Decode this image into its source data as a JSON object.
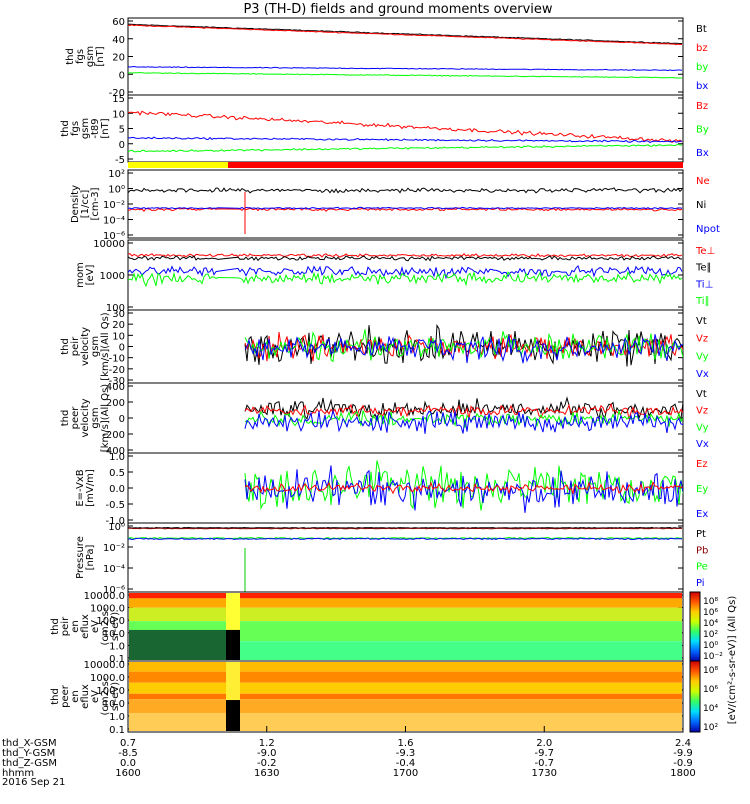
{
  "title": "P3 (TH-D) fields and ground moments overview",
  "date_label": "2016 Sep 21",
  "colors": {
    "black": "#000000",
    "red": "#ff0000",
    "green": "#00ff00",
    "blue": "#0000ff",
    "darkred": "#880000",
    "yellow": "#ffff00"
  },
  "chart_data": [
    {
      "type": "line",
      "ylabel": [
        "thd",
        "fgs",
        "gsm",
        "[nT]"
      ],
      "yticks": [
        "60",
        "40",
        "20",
        "0",
        "-20"
      ],
      "ylim": [
        -20,
        65
      ],
      "series": [
        {
          "name": "Bt",
          "color": "#000000",
          "start": 61,
          "end": 38
        },
        {
          "name": "bz",
          "color": "#ff0000",
          "start": 60,
          "end": 37
        },
        {
          "name": "by",
          "color": "#00ff00",
          "start": 3,
          "end": -3
        },
        {
          "name": "bx",
          "color": "#0000ff",
          "start": 10,
          "end": 6
        }
      ]
    },
    {
      "type": "line",
      "ylabel": [
        "thd",
        "fgs",
        "gsm",
        "-t89",
        "[nT]"
      ],
      "yticks": [
        "15",
        "10",
        "5",
        "0",
        "-5"
      ],
      "ylim": [
        -8,
        16
      ],
      "series": [
        {
          "name": "Bz",
          "color": "#ff0000",
          "start": 10.5,
          "end": -1
        },
        {
          "name": "By",
          "color": "#00ff00",
          "start": -5,
          "end": -2.5
        },
        {
          "name": "Bx",
          "color": "#0000ff",
          "start": 0.3,
          "end": -1.2
        }
      ]
    },
    {
      "type": "line",
      "ylabel": [
        "Density",
        "[1/cc]",
        "[cm-3]"
      ],
      "yticks": [
        "10²",
        "10⁰",
        "10⁻²",
        "10⁻⁴",
        "10⁻⁶"
      ],
      "log": true,
      "series": [
        {
          "name": "Ne",
          "color": "#ff0000"
        },
        {
          "name": "Ni",
          "color": "#000000"
        },
        {
          "name": "Npot",
          "color": "#0000ff"
        }
      ]
    },
    {
      "type": "line",
      "ylabel": [
        "mom",
        "[eV]"
      ],
      "yticks": [
        "10000",
        "1000",
        "100"
      ],
      "log": true,
      "series": [
        {
          "name": "Te⊥",
          "color": "#ff0000"
        },
        {
          "name": "Te∥",
          "color": "#000000"
        },
        {
          "name": "Ti⊥",
          "color": "#0000ff"
        },
        {
          "name": "Ti∥",
          "color": "#00ff00"
        }
      ]
    },
    {
      "type": "line",
      "ylabel": [
        "thd",
        "peir",
        "velocity",
        "gsm",
        "[km/s](All Qs)"
      ],
      "yticks": [
        "30",
        "20",
        "10",
        "0",
        "-10",
        "-20",
        "-30"
      ],
      "ylim": [
        -30,
        30
      ],
      "series": [
        {
          "name": "Vt",
          "color": "#000000"
        },
        {
          "name": "Vz",
          "color": "#ff0000"
        },
        {
          "name": "Vy",
          "color": "#00ff00"
        },
        {
          "name": "Vx",
          "color": "#0000ff"
        }
      ]
    },
    {
      "type": "line",
      "ylabel": [
        "thd",
        "peer",
        "velocity",
        "gsm",
        "[km/s](All Qs)"
      ],
      "yticks": [
        "400",
        "200",
        "0",
        "-200",
        "-400"
      ],
      "ylim": [
        -400,
        400
      ],
      "series": [
        {
          "name": "Vt",
          "color": "#000000"
        },
        {
          "name": "Vz",
          "color": "#ff0000"
        },
        {
          "name": "Vy",
          "color": "#00ff00"
        },
        {
          "name": "Vx",
          "color": "#0000ff"
        }
      ]
    },
    {
      "type": "line",
      "ylabel": [
        "E=-VxB",
        "[mV/m]"
      ],
      "yticks": [
        "1.0",
        "0.5",
        "0.0",
        "-0.5",
        "-1.0"
      ],
      "ylim": [
        -1,
        1
      ],
      "series": [
        {
          "name": "Ez",
          "color": "#ff0000"
        },
        {
          "name": "Ey",
          "color": "#00ff00"
        },
        {
          "name": "Ex",
          "color": "#0000ff"
        }
      ]
    },
    {
      "type": "line",
      "ylabel": [
        "Pressure",
        "[nPa]"
      ],
      "yticks": [
        "10⁰",
        "10⁻²",
        "10⁻⁴",
        "10⁻⁶"
      ],
      "log": true,
      "series": [
        {
          "name": "Pt",
          "color": "#000000"
        },
        {
          "name": "Pb",
          "color": "#880000"
        },
        {
          "name": "Pe",
          "color": "#00ff00"
        },
        {
          "name": "Pi",
          "color": "#0000ff"
        }
      ]
    },
    {
      "type": "heatmap",
      "ylabel": [
        "thd",
        "peir",
        "en",
        "eflux",
        "eV",
        "(cm2-s-",
        "sr-eV)"
      ],
      "yticks": [
        "10000.0",
        "1000.0",
        "100.0",
        "10.0",
        "1.0",
        "0.1"
      ]
    },
    {
      "type": "heatmap",
      "ylabel": [
        "thd",
        "peer",
        "en",
        "eflux",
        "eV",
        "(cm2-s-",
        "sr-eV)"
      ],
      "yticks": [
        "10000.0",
        "1000.0",
        "100.0",
        "10.0",
        "1.0",
        "0.1"
      ]
    }
  ],
  "colorbar": {
    "label": "[eV/(cm²-s-sr-eV)] (All Qs)",
    "ticks_top": [
      "10⁸",
      "10⁶",
      "10⁴",
      "10²",
      "10⁰",
      "10⁻²"
    ],
    "ticks_bottom": [
      "10⁸",
      "10⁶",
      "10⁴",
      "10²"
    ]
  },
  "xaxis": {
    "row_labels": [
      "thd_X-GSM",
      "thd_Y-GSM",
      "thd_Z-GSM",
      "hhmm"
    ],
    "ticks": [
      {
        "values": [
          "0.7",
          "-8.5",
          "0.0",
          "1600"
        ]
      },
      {
        "values": [
          "1.2",
          "-9.0",
          "-0.2",
          "1630"
        ]
      },
      {
        "values": [
          "1.6",
          "-9.3",
          "-0.4",
          "1700"
        ]
      },
      {
        "values": [
          "2.0",
          "-9.7",
          "-0.7",
          "1730"
        ]
      },
      {
        "values": [
          "2.4",
          "-9.9",
          "-0.9",
          "1800"
        ]
      }
    ]
  }
}
